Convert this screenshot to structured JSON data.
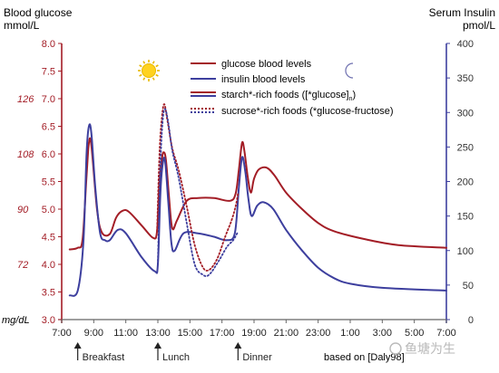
{
  "chart_data": {
    "type": "line",
    "title": "",
    "left_axis": {
      "label_line1": "Blood glucose",
      "label_line2": "mmol/L",
      "ylim": [
        3.0,
        8.0
      ],
      "ticks": [
        "3.0",
        "3.5",
        "4.0",
        "4.5",
        "5.0",
        "5.5",
        "6.0",
        "6.5",
        "7.0",
        "7.5",
        "8.0"
      ]
    },
    "right_axis": {
      "label_line1": "Serum Insulin",
      "label_line2": "pmol/L",
      "ylim": [
        0,
        400
      ],
      "ticks": [
        "0",
        "50",
        "100",
        "150",
        "200",
        "250",
        "300",
        "350",
        "400"
      ]
    },
    "mgdl_axis": {
      "unit_label": "mg/dL",
      "ticks": [
        {
          "label": "72",
          "mmol": 4.0
        },
        {
          "label": "90",
          "mmol": 5.0
        },
        {
          "label": "108",
          "mmol": 6.0
        },
        {
          "label": "126",
          "mmol": 7.0
        }
      ]
    },
    "x_axis": {
      "range_hours": [
        7,
        31
      ],
      "ticks": [
        "7:00",
        "9:00",
        "11:00",
        "13:00",
        "15:00",
        "17:00",
        "19:00",
        "21:00",
        "23:00",
        "1:00",
        "3:00",
        "5:00",
        "7:00"
      ]
    },
    "meals": [
      {
        "label": "Breakfast",
        "hour": 8
      },
      {
        "label": "Lunch",
        "hour": 13
      },
      {
        "label": "Dinner",
        "hour": 18
      }
    ],
    "legend": {
      "glucose": "glucose blood levels",
      "insulin": "insulin blood levels",
      "starch": "starch*-rich foods ([*glucose]",
      "starch_sub": "n",
      "starch_end": ")",
      "sucrose": "sucrose*-rich foods (*glucose-fructose)"
    },
    "source_note": "based on [Daly98]",
    "watermark": "鱼塘为生",
    "colors": {
      "glucose": "#a31d26",
      "insulin": "#3d3f9e",
      "axis_left": "#a31d26",
      "axis_right": "#3d3f9e"
    },
    "series": [
      {
        "name": "glucose blood levels",
        "style": "solid",
        "unit": "mmol/L",
        "points": [
          [
            7.5,
            4.27
          ],
          [
            8.0,
            4.3
          ],
          [
            8.3,
            4.45
          ],
          [
            8.55,
            5.6
          ],
          [
            8.7,
            6.2
          ],
          [
            8.85,
            6.15
          ],
          [
            9.2,
            5.0
          ],
          [
            9.5,
            4.58
          ],
          [
            10.0,
            4.55
          ],
          [
            10.4,
            4.85
          ],
          [
            10.8,
            4.97
          ],
          [
            11.2,
            4.95
          ],
          [
            12.0,
            4.7
          ],
          [
            12.7,
            4.48
          ],
          [
            12.95,
            4.6
          ],
          [
            13.1,
            5.5
          ],
          [
            13.25,
            5.9
          ],
          [
            13.35,
            6.03
          ],
          [
            13.5,
            5.9
          ],
          [
            13.7,
            5.2
          ],
          [
            13.9,
            4.65
          ],
          [
            14.2,
            4.8
          ],
          [
            14.8,
            5.15
          ],
          [
            15.5,
            5.2
          ],
          [
            16.5,
            5.2
          ],
          [
            17.5,
            5.15
          ],
          [
            17.85,
            5.28
          ],
          [
            18.05,
            5.7
          ],
          [
            18.25,
            6.2
          ],
          [
            18.4,
            6.05
          ],
          [
            18.6,
            5.6
          ],
          [
            18.8,
            5.3
          ],
          [
            19.0,
            5.55
          ],
          [
            19.3,
            5.72
          ],
          [
            19.8,
            5.75
          ],
          [
            20.3,
            5.6
          ],
          [
            21.0,
            5.3
          ],
          [
            22.0,
            5.0
          ],
          [
            23.0,
            4.75
          ],
          [
            24.0,
            4.6
          ],
          [
            26.0,
            4.45
          ],
          [
            28.0,
            4.35
          ],
          [
            31.0,
            4.3
          ]
        ]
      },
      {
        "name": "insulin blood levels",
        "style": "solid",
        "unit": "pmol/L",
        "points": [
          [
            7.5,
            35
          ],
          [
            8.0,
            42
          ],
          [
            8.35,
            110
          ],
          [
            8.55,
            240
          ],
          [
            8.7,
            280
          ],
          [
            8.85,
            270
          ],
          [
            9.1,
            190
          ],
          [
            9.4,
            125
          ],
          [
            9.7,
            115
          ],
          [
            10.0,
            115
          ],
          [
            10.5,
            130
          ],
          [
            11.0,
            125
          ],
          [
            12.0,
            90
          ],
          [
            12.8,
            70
          ],
          [
            13.0,
            80
          ],
          [
            13.15,
            180
          ],
          [
            13.3,
            225
          ],
          [
            13.45,
            230
          ],
          [
            13.65,
            170
          ],
          [
            13.85,
            110
          ],
          [
            14.05,
            100
          ],
          [
            14.6,
            125
          ],
          [
            15.5,
            125
          ],
          [
            16.5,
            120
          ],
          [
            17.3,
            115
          ],
          [
            17.8,
            125
          ],
          [
            18.05,
            190
          ],
          [
            18.25,
            235
          ],
          [
            18.45,
            215
          ],
          [
            18.65,
            175
          ],
          [
            18.85,
            150
          ],
          [
            19.2,
            165
          ],
          [
            19.6,
            170
          ],
          [
            20.2,
            160
          ],
          [
            21.0,
            130
          ],
          [
            22.0,
            100
          ],
          [
            23.0,
            75
          ],
          [
            24.0,
            60
          ],
          [
            25.0,
            52
          ],
          [
            27.0,
            46
          ],
          [
            31.0,
            42
          ]
        ]
      },
      {
        "name": "sucrose glucose",
        "style": "dotted",
        "unit": "mmol/L",
        "points": [
          [
            12.95,
            4.6
          ],
          [
            13.1,
            6.0
          ],
          [
            13.25,
            6.65
          ],
          [
            13.4,
            6.9
          ],
          [
            13.6,
            6.6
          ],
          [
            13.9,
            6.1
          ],
          [
            14.3,
            5.7
          ],
          [
            14.8,
            5.05
          ],
          [
            15.3,
            4.35
          ],
          [
            15.8,
            3.95
          ],
          [
            16.2,
            3.9
          ],
          [
            16.7,
            4.1
          ],
          [
            17.2,
            4.5
          ],
          [
            17.6,
            4.8
          ],
          [
            17.85,
            5.05
          ],
          [
            18.0,
            5.28
          ]
        ]
      },
      {
        "name": "sucrose insulin",
        "style": "dotted",
        "unit": "pmol/L",
        "points": [
          [
            13.0,
            80
          ],
          [
            13.15,
            220
          ],
          [
            13.3,
            288
          ],
          [
            13.45,
            305
          ],
          [
            13.65,
            285
          ],
          [
            13.9,
            245
          ],
          [
            14.3,
            205
          ],
          [
            14.8,
            140
          ],
          [
            15.3,
            80
          ],
          [
            15.8,
            65
          ],
          [
            16.2,
            65
          ],
          [
            16.8,
            85
          ],
          [
            17.3,
            105
          ],
          [
            17.7,
            115
          ],
          [
            17.95,
            125
          ]
        ]
      }
    ]
  }
}
